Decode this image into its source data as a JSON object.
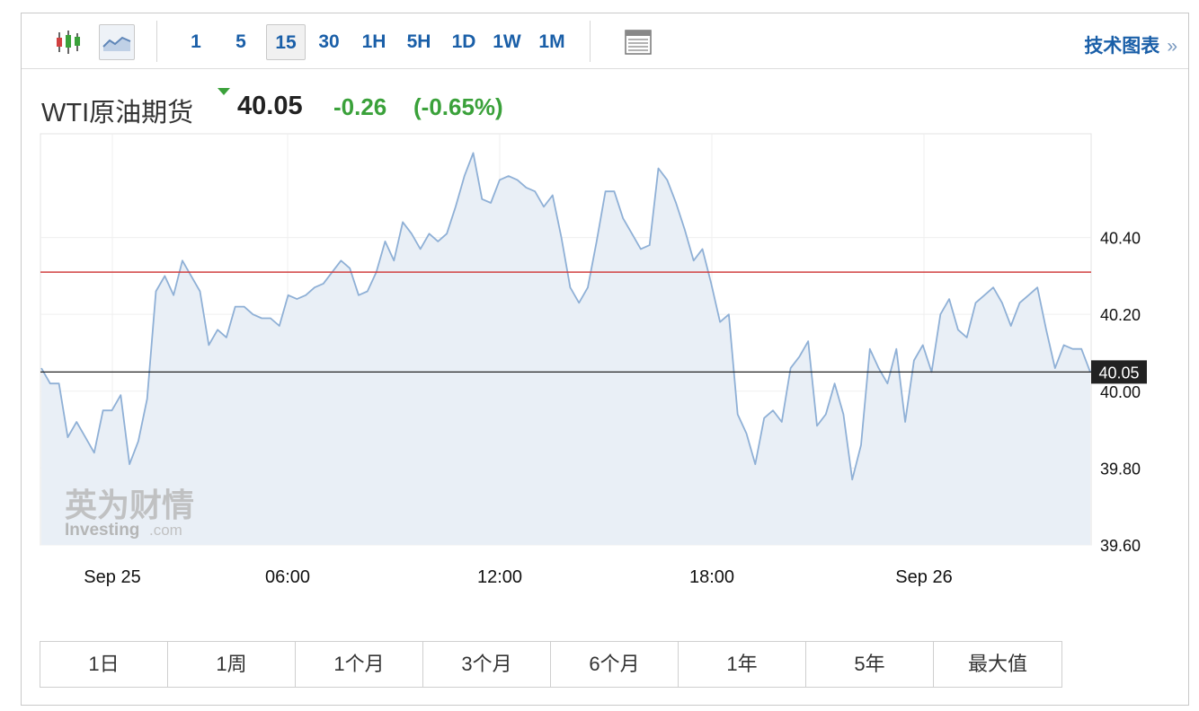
{
  "toolbar": {
    "timeframes": [
      "1",
      "5",
      "15",
      "30",
      "1H",
      "5H",
      "1D",
      "1W",
      "1M"
    ],
    "active_timeframe": "15",
    "tech_chart_link": "技术图表",
    "chevron": "»"
  },
  "instrument": {
    "name": "WTI原油期货",
    "price": "40.05",
    "change": "-0.26",
    "change_pct": "(-0.65%)"
  },
  "watermark": {
    "brand_cn": "英为财情",
    "brand_en": "Investing",
    "brand_suffix": ".com"
  },
  "range_buttons": [
    "1日",
    "1周",
    "1个月",
    "3个月",
    "6个月",
    "1年",
    "5年",
    "最大值"
  ],
  "colors": {
    "accent": "#1a5fa8",
    "positive_negative_change": "#3aa13a",
    "line": "#8fb0d6",
    "area_fill": "#e9eff6",
    "reference_line": "#d14040",
    "current_price_line": "#222222"
  },
  "chart_data": {
    "type": "area",
    "title": "",
    "xlabel": "",
    "ylabel": "",
    "x_tick_labels": [
      "Sep 25",
      "06:00",
      "12:00",
      "18:00",
      "Sep 26"
    ],
    "y_tick_labels": [
      "39.60",
      "39.80",
      "40.00",
      "40.20",
      "40.40"
    ],
    "ylim": [
      39.6,
      40.67
    ],
    "grid": true,
    "reference_line": 40.31,
    "current_price_label": "40.05",
    "series": [
      {
        "values": [
          40.06,
          40.02,
          40.02,
          39.88,
          39.92,
          39.88,
          39.84,
          39.95,
          39.95,
          39.99,
          39.81,
          39.87,
          39.98,
          40.26,
          40.3,
          40.25,
          40.34,
          40.3,
          40.26,
          40.12,
          40.16,
          40.14,
          40.22,
          40.22,
          40.2,
          40.19,
          40.19,
          40.17,
          40.25,
          40.24,
          40.25,
          40.27,
          40.28,
          40.31,
          40.34,
          40.32,
          40.25,
          40.26,
          40.31,
          40.39,
          40.34,
          40.44,
          40.41,
          40.37,
          40.41,
          40.39,
          40.41,
          40.48,
          40.56,
          40.62,
          40.5,
          40.49,
          40.55,
          40.56,
          40.55,
          40.53,
          40.52,
          40.48,
          40.51,
          40.4,
          40.27,
          40.23,
          40.27,
          40.39,
          40.52,
          40.52,
          40.45,
          40.41,
          40.37,
          40.38,
          40.58,
          40.55,
          40.49,
          40.42,
          40.34,
          40.37,
          40.28,
          40.18,
          40.2,
          39.94,
          39.89,
          39.81,
          39.93,
          39.95,
          39.92,
          40.06,
          40.09,
          40.13,
          39.91,
          39.94,
          40.02,
          39.94,
          39.77,
          39.86,
          40.11,
          40.06,
          40.02,
          40.11,
          39.92,
          40.08,
          40.12,
          40.05,
          40.2,
          40.24,
          40.16,
          40.14,
          40.23,
          40.25,
          40.27,
          40.23,
          40.17,
          40.23,
          40.25,
          40.27,
          40.16,
          40.06,
          40.12,
          40.11,
          40.11,
          40.05
        ]
      }
    ]
  }
}
